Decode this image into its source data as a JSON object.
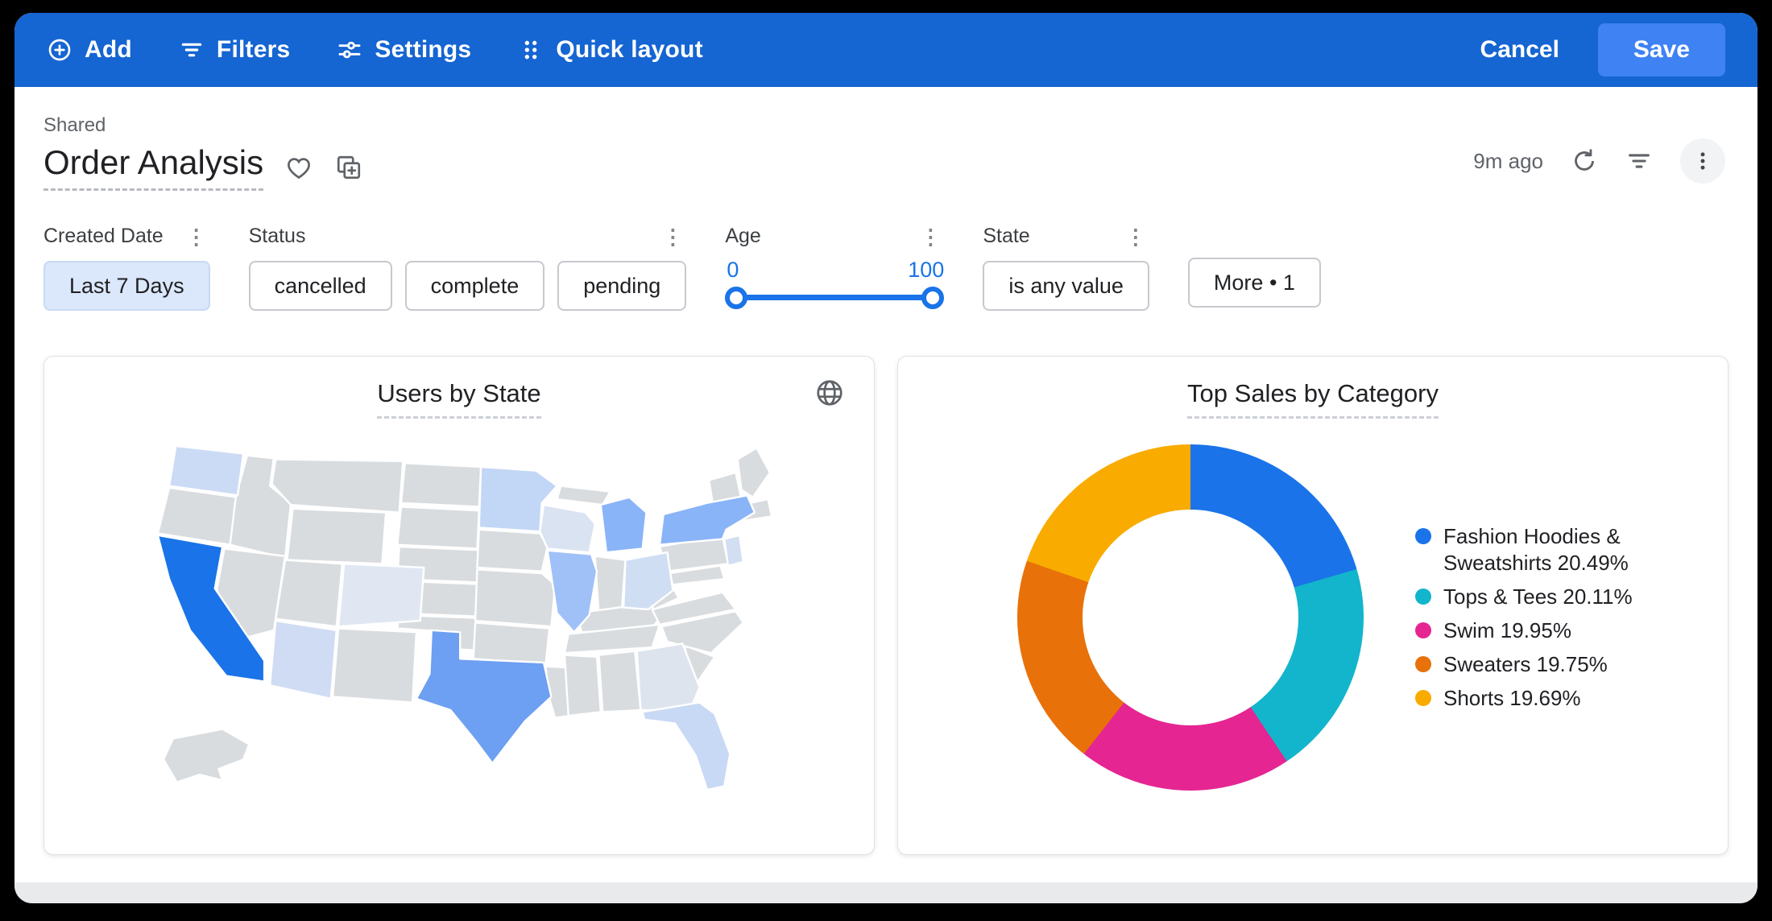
{
  "header": {
    "add": "Add",
    "filters": "Filters",
    "settings": "Settings",
    "quick_layout": "Quick layout",
    "cancel": "Cancel",
    "save": "Save"
  },
  "title_bar": {
    "breadcrumb": "Shared",
    "title": "Order Analysis",
    "updated": "9m ago"
  },
  "filters": {
    "created_date": {
      "label": "Created Date",
      "value": "Last 7 Days"
    },
    "status": {
      "label": "Status",
      "values": [
        "cancelled",
        "complete",
        "pending"
      ]
    },
    "age": {
      "label": "Age",
      "min": "0",
      "max": "100"
    },
    "state": {
      "label": "State",
      "value": "is any value"
    },
    "more_label": "More • 1"
  },
  "chart_data": [
    {
      "type": "choropleth",
      "title": "Users by State",
      "region": "USA",
      "state_colors": {
        "CA": "#1a73e8",
        "TX": "#6d9ff2",
        "NY": "#8ab4f8",
        "MI": "#8ab4f8",
        "IL": "#a0c1f7",
        "MN": "#c2d6f5",
        "WA": "#ccdbf5",
        "WI": "#dae3f2",
        "OH": "#d0def3",
        "FL": "#c8d9f5",
        "AZ": "#cfdcf3",
        "NJ": "#d2def2",
        "CO": "#e0e7f2",
        "GA": "#dde4ee"
      },
      "default_color": "#d9dcdf"
    },
    {
      "type": "donut",
      "title": "Top Sales by Category",
      "legend_position": "right",
      "series": [
        {
          "label": "Fashion Hoodies & Sweatshirts",
          "value": 20.49,
          "color": "#1a73e8"
        },
        {
          "label": "Tops & Tees",
          "value": 20.11,
          "color": "#12b5cb"
        },
        {
          "label": "Swim",
          "value": 19.95,
          "color": "#e52592"
        },
        {
          "label": "Sweaters",
          "value": 19.75,
          "color": "#e8710a"
        },
        {
          "label": "Shorts",
          "value": 19.69,
          "color": "#f9ab00"
        }
      ]
    }
  ]
}
